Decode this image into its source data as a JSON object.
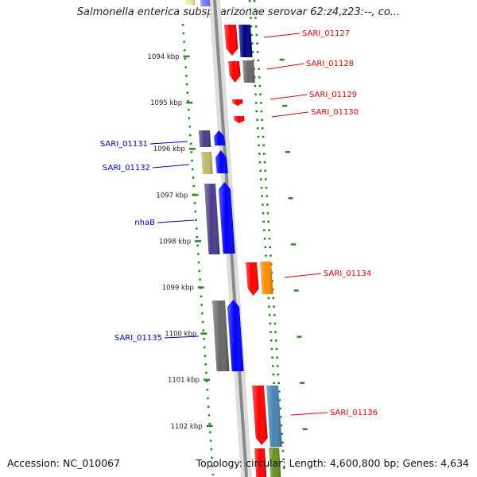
{
  "title": "Salmonella enterica subsp. arizonae serovar 62:z4,z23:--, co...",
  "footer": {
    "accession": "Accession: NC_010067",
    "topology": "Topology: circular; Length: 4,600,800 bp; Genes: 4,634"
  },
  "colors": {
    "backbone": "#8a8a8a",
    "tick": "#228b22",
    "label_right": "#dd0000",
    "label_left": "#0000bb",
    "red_gene": "#ff0000",
    "blue_gene": "#0000ff",
    "navy_gene": "#000080",
    "gray_gene": "#666666",
    "slate_gene": "#483d8b",
    "khaki_gene": "#bdb76b",
    "orange_gene": "#ff8c00",
    "steel_gene": "#4682b4",
    "olive_gene": "#6b8e23",
    "yellow_gene": "#eee8aa"
  },
  "kbp_ticks": [
    {
      "label": "1094 kbp"
    },
    {
      "label": "1095 kbp"
    },
    {
      "label": "1096 kbp"
    },
    {
      "label": "1097 kbp"
    },
    {
      "label": "1098 kbp"
    },
    {
      "label": "1099 kbp"
    },
    {
      "label": "1100 kbp"
    },
    {
      "label": "1101 kbp"
    },
    {
      "label": "1102 kbp"
    }
  ],
  "genes": [
    {
      "label": "SARI_01127",
      "side": "right"
    },
    {
      "label": "SARI_01128",
      "side": "right"
    },
    {
      "label": "SARI_01129",
      "side": "right"
    },
    {
      "label": "SARI_01130",
      "side": "right"
    },
    {
      "label": "SARI_01131",
      "side": "left"
    },
    {
      "label": "SARI_01132",
      "side": "left"
    },
    {
      "label": "nhaB",
      "side": "left"
    },
    {
      "label": "SARI_01134",
      "side": "right"
    },
    {
      "label": "SARI_01135",
      "side": "left"
    },
    {
      "label": "SARI_01136",
      "side": "right"
    }
  ]
}
